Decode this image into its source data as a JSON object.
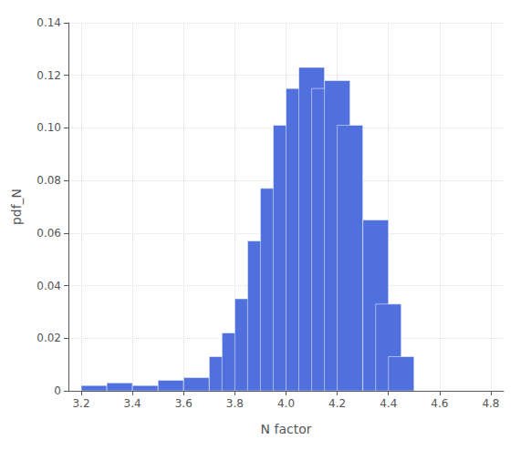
{
  "chart_data": {
    "type": "bar",
    "xlabel": "N factor",
    "ylabel": "pdf_N",
    "x": [
      3.25,
      3.35,
      3.45,
      3.55,
      3.65,
      3.75,
      3.8,
      3.85,
      3.9,
      3.95,
      4.0,
      4.05,
      4.1,
      4.15,
      4.2,
      4.25,
      4.35,
      4.4,
      4.45
    ],
    "values": [
      0.002,
      0.003,
      0.002,
      0.004,
      0.005,
      0.013,
      0.022,
      0.035,
      0.057,
      0.077,
      0.101,
      0.115,
      0.123,
      0.115,
      0.118,
      0.101,
      0.065,
      0.033,
      0.013
    ],
    "xlim": [
      3.15,
      4.85
    ],
    "xticks": [
      3.2,
      3.4,
      3.6,
      3.8,
      {
        "value": 4.0,
        "label": "4.0"
      },
      4.2,
      4.4,
      4.6,
      4.8
    ],
    "ylim": [
      0,
      0.14
    ],
    "yticks": [
      0,
      0.02,
      0.04,
      0.06,
      0.08,
      {
        "value": 0.1,
        "label": "0.10"
      },
      0.12,
      0.14
    ],
    "grid": true
  }
}
